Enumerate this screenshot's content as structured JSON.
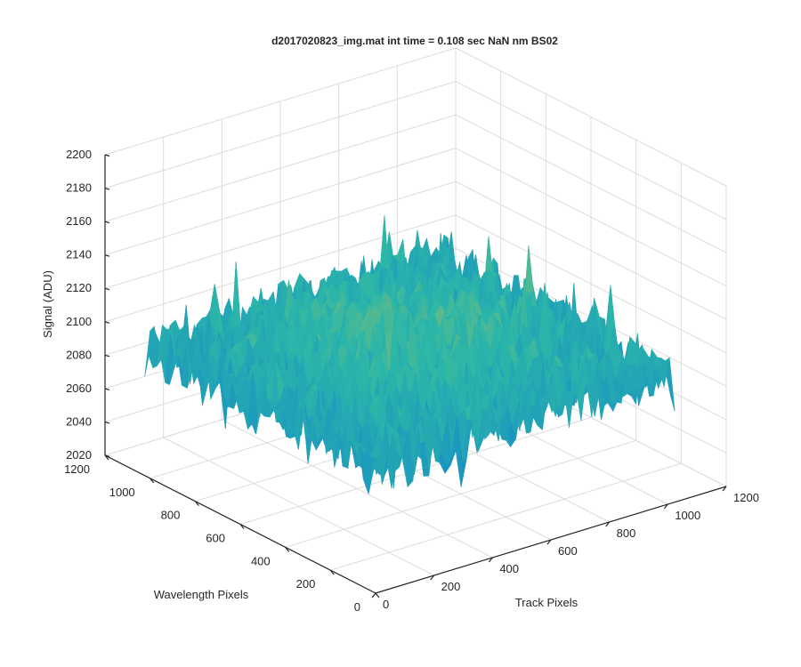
{
  "chart_data": {
    "type": "surface3d",
    "title": "d2017020823_img.mat int time = 0.108 sec  NaN nm BS02",
    "xlabel": "Track Pixels",
    "ylabel": "Wavelength Pixels",
    "zlabel": "Signal (ADU)",
    "xlim": [
      0,
      1200
    ],
    "ylim": [
      0,
      1200
    ],
    "zlim": [
      2020,
      2200
    ],
    "x_ticks": [
      0,
      200,
      400,
      600,
      800,
      1000,
      1200
    ],
    "y_ticks": [
      0,
      200,
      400,
      600,
      800,
      1000,
      1200
    ],
    "z_ticks": [
      2020,
      2040,
      2060,
      2080,
      2100,
      2120,
      2140,
      2160,
      2180,
      2200
    ],
    "x_tick_labels": [
      "0",
      "200",
      "400",
      "600",
      "800",
      "1000",
      "1200"
    ],
    "y_tick_labels": [
      "0",
      "200",
      "400",
      "600",
      "800",
      "1000",
      "1200"
    ],
    "z_tick_labels": [
      "2020",
      "2040",
      "2060",
      "2080",
      "2100",
      "2120",
      "2140",
      "2160",
      "2180",
      "2200"
    ],
    "data_extent": {
      "x": [
        0,
        1024
      ],
      "y": [
        0,
        1024
      ]
    },
    "signal_mean_approx": 2100,
    "signal_range_approx": [
      2030,
      2185
    ],
    "grid": true,
    "colormap": "parula",
    "colors": {
      "low": "#0a72d8",
      "mid": "#2cb7a8",
      "high": "#f2c232",
      "grid": "#dcdcdc",
      "axis": "#262626"
    }
  }
}
